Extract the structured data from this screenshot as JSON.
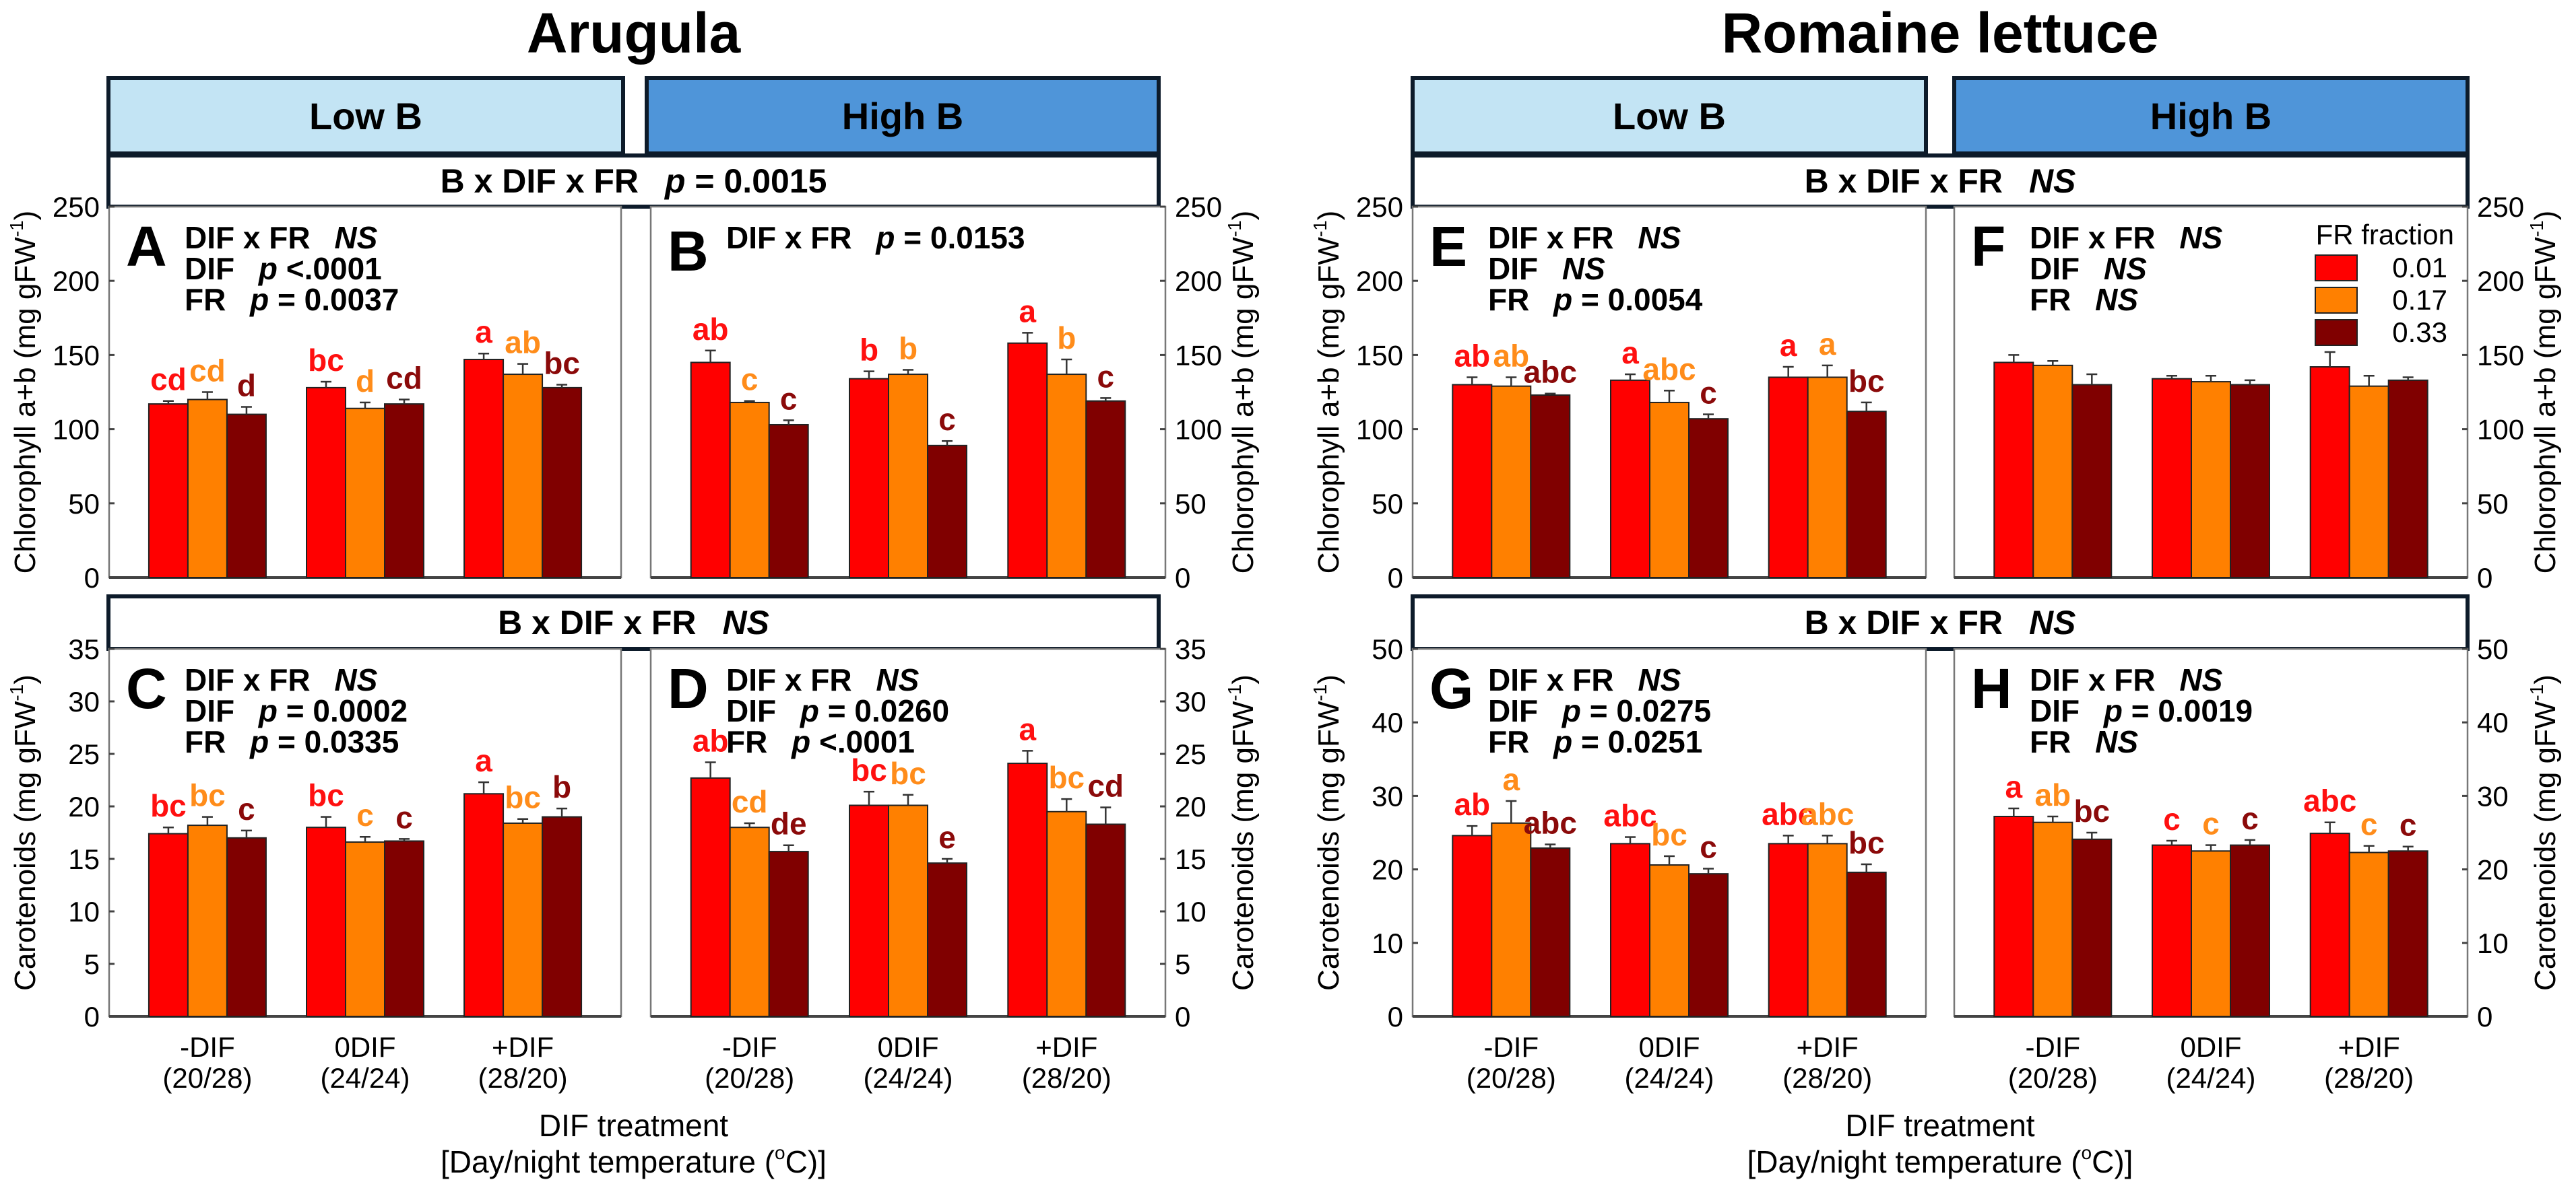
{
  "colors": {
    "fr_0.01": "#ff0000",
    "fr_0.17": "#ff8000",
    "fr_0.33": "#800000",
    "letter_0.01": "#ff1010",
    "letter_0.17": "#ff8c1a",
    "letter_0.33": "#8b0a0a",
    "low_b": "#c3e4f4",
    "high_b": "#4f95d9",
    "frame": "#0d1b2a"
  },
  "p_symbol": "p",
  "species": [
    {
      "title": "Arugula",
      "boron_headers": [
        "Low B",
        "High B"
      ],
      "interactions": {
        "chl": {
          "term": "B x DIF x FR",
          "value": "= 0.0015"
        },
        "car": {
          "term": "B x DIF x FR",
          "value": "NS"
        }
      },
      "x_title": "DIF treatment",
      "x_subtitle": {
        "pre": "[Day/night temperature (",
        "sup": "o",
        "post": "C)]"
      }
    },
    {
      "title": "Romaine lettuce",
      "boron_headers": [
        "Low B",
        "High B"
      ],
      "interactions": {
        "chl": {
          "term": "B x DIF x FR",
          "value": "NS"
        },
        "car": {
          "term": "B x DIF x FR",
          "value": "NS"
        }
      },
      "x_title": "DIF treatment",
      "x_subtitle": {
        "pre": "[Day/night temperature (",
        "sup": "o",
        "post": "C)]"
      }
    }
  ],
  "chart_data": {
    "type": "bar",
    "categories": [
      "-DIF",
      "0DIF",
      "+DIF"
    ],
    "category_temps": [
      "(20/28)",
      "(24/24)",
      "(28/20)"
    ],
    "series_names": [
      "0.01",
      "0.17",
      "0.33"
    ],
    "legend": {
      "title": "FR fraction",
      "entries": [
        "0.01",
        "0.17",
        "0.33"
      ],
      "placement": "top-right of panel F"
    },
    "ylabels": {
      "chl": {
        "text": "Chlorophyll a+b (mg gFW",
        "sup": "-1",
        "close": ")"
      },
      "car": {
        "text": "Carotenoids (mg gFW",
        "sup": "-1",
        "close": ")"
      }
    },
    "panels": [
      {
        "id": "A",
        "species": "Arugula",
        "boron": "Low B",
        "metric": "chl",
        "ylim": [
          0,
          250
        ],
        "yticks": [
          "0",
          "50",
          "100",
          "150",
          "200",
          "250"
        ],
        "stats": [
          {
            "term": "DIF x FR",
            "value": "NS"
          },
          {
            "term": "DIF",
            "value": "<.0001"
          },
          {
            "term": "FR",
            "value": "= 0.0037"
          }
        ],
        "values": [
          [
            117,
            120,
            110
          ],
          [
            128,
            114,
            117
          ],
          [
            147,
            137,
            128
          ]
        ],
        "errors": [
          [
            2,
            5,
            5
          ],
          [
            4,
            4,
            3
          ],
          [
            4,
            7,
            2
          ]
        ],
        "letters": [
          [
            "cd",
            "cd",
            "d"
          ],
          [
            "bc",
            "d",
            "cd"
          ],
          [
            "a",
            "ab",
            "bc"
          ]
        ]
      },
      {
        "id": "B",
        "species": "Arugula",
        "boron": "High B",
        "metric": "chl",
        "ylim": [
          0,
          250
        ],
        "yticks": [
          "0",
          "50",
          "100",
          "150",
          "200",
          "250"
        ],
        "stats": [
          {
            "term": "DIF x FR",
            "value": "= 0.0153"
          }
        ],
        "values": [
          [
            145,
            118,
            103
          ],
          [
            134,
            137,
            89
          ],
          [
            158,
            137,
            119
          ]
        ],
        "errors": [
          [
            8,
            1,
            3
          ],
          [
            5,
            3,
            3
          ],
          [
            7,
            10,
            2
          ]
        ],
        "letters": [
          [
            "ab",
            "c",
            "c"
          ],
          [
            "b",
            "b",
            "c"
          ],
          [
            "a",
            "b",
            "c"
          ]
        ]
      },
      {
        "id": "C",
        "species": "Arugula",
        "boron": "Low B",
        "metric": "car",
        "ylim": [
          0,
          35
        ],
        "yticks": [
          "0",
          "5",
          "10",
          "15",
          "20",
          "25",
          "30",
          "35"
        ],
        "stats": [
          {
            "term": "DIF x FR",
            "value": "NS"
          },
          {
            "term": "DIF",
            "value": "= 0.0002"
          },
          {
            "term": "FR",
            "value": "= 0.0335"
          }
        ],
        "values": [
          [
            17.4,
            18.2,
            17.0
          ],
          [
            18.0,
            16.6,
            16.7
          ],
          [
            21.2,
            18.4,
            19.0
          ]
        ],
        "errors": [
          [
            0.6,
            0.8,
            0.7
          ],
          [
            1.0,
            0.5,
            0.2
          ],
          [
            1.1,
            0.4,
            0.8
          ]
        ],
        "letters": [
          [
            "bc",
            "bc",
            "c"
          ],
          [
            "bc",
            "c",
            "c"
          ],
          [
            "a",
            "bc",
            "b"
          ]
        ]
      },
      {
        "id": "D",
        "species": "Arugula",
        "boron": "High B",
        "metric": "car",
        "ylim": [
          0,
          35
        ],
        "yticks": [
          "0",
          "5",
          "10",
          "15",
          "20",
          "25",
          "30",
          "35"
        ],
        "stats": [
          {
            "term": "DIF x FR",
            "value": "NS"
          },
          {
            "term": "DIF",
            "value": "= 0.0260"
          },
          {
            "term": "FR",
            "value": "<.0001"
          }
        ],
        "values": [
          [
            22.7,
            18.0,
            15.7
          ],
          [
            20.1,
            20.1,
            14.6
          ],
          [
            24.1,
            19.5,
            18.3
          ]
        ],
        "errors": [
          [
            1.5,
            0.4,
            0.6
          ],
          [
            1.3,
            1.0,
            0.4
          ],
          [
            1.2,
            1.2,
            1.6
          ]
        ],
        "letters": [
          [
            "ab",
            "cd",
            "de"
          ],
          [
            "bc",
            "bc",
            "e"
          ],
          [
            "a",
            "bc",
            "cd"
          ]
        ]
      },
      {
        "id": "E",
        "species": "Romaine lettuce",
        "boron": "Low B",
        "metric": "chl",
        "ylim": [
          0,
          250
        ],
        "yticks": [
          "0",
          "50",
          "100",
          "150",
          "200",
          "250"
        ],
        "stats": [
          {
            "term": "DIF x FR",
            "value": "NS"
          },
          {
            "term": "DIF",
            "value": "NS"
          },
          {
            "term": "FR",
            "value": "= 0.0054"
          }
        ],
        "values": [
          [
            130,
            129,
            123
          ],
          [
            133,
            118,
            107
          ],
          [
            135,
            135,
            112
          ]
        ],
        "errors": [
          [
            5,
            6,
            1
          ],
          [
            4,
            8,
            3
          ],
          [
            7,
            8,
            6
          ]
        ],
        "letters": [
          [
            "ab",
            "ab",
            "abc"
          ],
          [
            "a",
            "abc",
            "c"
          ],
          [
            "a",
            "a",
            "bc"
          ]
        ]
      },
      {
        "id": "F",
        "species": "Romaine lettuce",
        "boron": "High B",
        "metric": "chl",
        "ylim": [
          0,
          250
        ],
        "yticks": [
          "0",
          "50",
          "100",
          "150",
          "200",
          "250"
        ],
        "stats": [
          {
            "term": "DIF x FR",
            "value": "NS"
          },
          {
            "term": "DIF",
            "value": "NS"
          },
          {
            "term": "FR",
            "value": "NS"
          }
        ],
        "values": [
          [
            145,
            143,
            130
          ],
          [
            134,
            132,
            130
          ],
          [
            142,
            129,
            133
          ]
        ],
        "errors": [
          [
            5,
            3,
            7
          ],
          [
            2,
            4,
            3
          ],
          [
            10,
            7,
            2
          ]
        ],
        "letters": null
      },
      {
        "id": "G",
        "species": "Romaine lettuce",
        "boron": "Low B",
        "metric": "car",
        "ylim": [
          0,
          50
        ],
        "yticks": [
          "0",
          "10",
          "20",
          "30",
          "40",
          "50"
        ],
        "stats": [
          {
            "term": "DIF x FR",
            "value": "NS"
          },
          {
            "term": "DIF",
            "value": "= 0.0275"
          },
          {
            "term": "FR",
            "value": "= 0.0251"
          }
        ],
        "values": [
          [
            24.6,
            26.3,
            22.9
          ],
          [
            23.5,
            20.6,
            19.4
          ],
          [
            23.5,
            23.5,
            19.6
          ]
        ],
        "errors": [
          [
            1.3,
            3.0,
            0.5
          ],
          [
            0.9,
            1.2,
            0.7
          ],
          [
            1.1,
            1.1,
            1.1
          ]
        ],
        "letters": [
          [
            "ab",
            "a",
            "abc"
          ],
          [
            "abc",
            "bc",
            "c"
          ],
          [
            "abc",
            "abc",
            "bc"
          ]
        ]
      },
      {
        "id": "H",
        "species": "Romaine lettuce",
        "boron": "High B",
        "metric": "car",
        "ylim": [
          0,
          50
        ],
        "yticks": [
          "0",
          "10",
          "20",
          "30",
          "40",
          "50"
        ],
        "stats": [
          {
            "term": "DIF x FR",
            "value": "NS"
          },
          {
            "term": "DIF",
            "value": "= 0.0019"
          },
          {
            "term": "FR",
            "value": "NS"
          }
        ],
        "values": [
          [
            27.2,
            26.4,
            24.1
          ],
          [
            23.3,
            22.5,
            23.3
          ],
          [
            24.9,
            22.3,
            22.5
          ]
        ],
        "errors": [
          [
            1.1,
            0.8,
            0.9
          ],
          [
            0.6,
            0.8,
            0.7
          ],
          [
            1.5,
            0.9,
            0.6
          ]
        ],
        "letters": [
          [
            "a",
            "ab",
            "bc"
          ],
          [
            "c",
            "c",
            "c"
          ],
          [
            "abc",
            "c",
            "c"
          ]
        ]
      }
    ]
  }
}
